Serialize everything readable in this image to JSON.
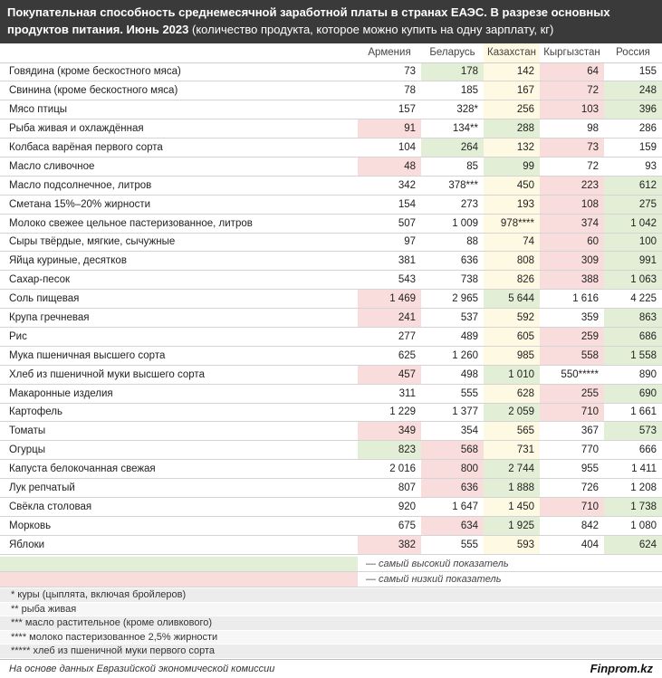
{
  "chart_data": {
    "type": "table",
    "title": "Покупательная способность среднемесячной заработной платы в странах ЕАЭС. В разрезе основных продуктов питания. Июнь 2023",
    "subtitle": "(количество продукта, которое можно купить на одну зарплату, кг)",
    "columns": [
      "Армения",
      "Беларусь",
      "Казахстан",
      "Кыргызстан",
      "Россия"
    ],
    "rows": [
      {
        "name": "Говядина (кроме бескостного мяса)",
        "cells": [
          "73",
          "178",
          "142",
          "64",
          "155"
        ],
        "marks": [
          "",
          "hi",
          "",
          "lo",
          ""
        ]
      },
      {
        "name": "Свинина (кроме бескостного мяса)",
        "cells": [
          "78",
          "185",
          "167",
          "72",
          "248"
        ],
        "marks": [
          "",
          "",
          "",
          "lo",
          "hi"
        ]
      },
      {
        "name": "Мясо птицы",
        "cells": [
          "157",
          "328*",
          "256",
          "103",
          "396"
        ],
        "marks": [
          "",
          "",
          "",
          "lo",
          "hi"
        ]
      },
      {
        "name": "Рыба живая и охлаждённая",
        "cells": [
          "91",
          "134**",
          "288",
          "98",
          "286"
        ],
        "marks": [
          "lo",
          "",
          "hi",
          "",
          ""
        ]
      },
      {
        "name": "Колбаса варёная первого сорта",
        "cells": [
          "104",
          "264",
          "132",
          "73",
          "159"
        ],
        "marks": [
          "",
          "hi",
          "",
          "lo",
          ""
        ]
      },
      {
        "name": "Масло сливочное",
        "cells": [
          "48",
          "85",
          "99",
          "72",
          "93"
        ],
        "marks": [
          "lo",
          "",
          "hi",
          "",
          ""
        ]
      },
      {
        "name": "Масло подсолнечное, литров",
        "cells": [
          "342",
          "378***",
          "450",
          "223",
          "612"
        ],
        "marks": [
          "",
          "",
          "",
          "lo",
          "hi"
        ]
      },
      {
        "name": "Сметана 15%–20% жирности",
        "cells": [
          "154",
          "273",
          "193",
          "108",
          "275"
        ],
        "marks": [
          "",
          "",
          "",
          "lo",
          "hi"
        ]
      },
      {
        "name": "Молоко свежее цельное пастеризованное, литров",
        "cells": [
          "507",
          "1 009",
          "978****",
          "374",
          "1 042"
        ],
        "marks": [
          "",
          "",
          "",
          "lo",
          "hi"
        ]
      },
      {
        "name": "Сыры твёрдые, мягкие, сычужные",
        "cells": [
          "97",
          "88",
          "74",
          "60",
          "100"
        ],
        "marks": [
          "",
          "",
          "",
          "lo",
          "hi"
        ]
      },
      {
        "name": "Яйца куриные, десятков",
        "cells": [
          "381",
          "636",
          "808",
          "309",
          "991"
        ],
        "marks": [
          "",
          "",
          "",
          "lo",
          "hi"
        ]
      },
      {
        "name": "Сахар-песок",
        "cells": [
          "543",
          "738",
          "826",
          "388",
          "1 063"
        ],
        "marks": [
          "",
          "",
          "",
          "lo",
          "hi"
        ]
      },
      {
        "name": "Соль пищевая",
        "cells": [
          "1 469",
          "2 965",
          "5 644",
          "1 616",
          "4 225"
        ],
        "marks": [
          "lo",
          "",
          "hi",
          "",
          ""
        ]
      },
      {
        "name": "Крупа гречневая",
        "cells": [
          "241",
          "537",
          "592",
          "359",
          "863"
        ],
        "marks": [
          "lo",
          "",
          "",
          "",
          "hi"
        ]
      },
      {
        "name": "Рис",
        "cells": [
          "277",
          "489",
          "605",
          "259",
          "686"
        ],
        "marks": [
          "",
          "",
          "",
          "lo",
          "hi"
        ]
      },
      {
        "name": "Мука пшеничная высшего сорта",
        "cells": [
          "625",
          "1 260",
          "985",
          "558",
          "1 558"
        ],
        "marks": [
          "",
          "",
          "",
          "lo",
          "hi"
        ]
      },
      {
        "name": "Хлеб из пшеничной муки высшего сорта",
        "cells": [
          "457",
          "498",
          "1 010",
          "550*****",
          "890"
        ],
        "marks": [
          "lo",
          "",
          "hi",
          "",
          ""
        ]
      },
      {
        "name": "Макаронные изделия",
        "cells": [
          "311",
          "555",
          "628",
          "255",
          "690"
        ],
        "marks": [
          "",
          "",
          "",
          "lo",
          "hi"
        ]
      },
      {
        "name": "Картофель",
        "cells": [
          "1 229",
          "1 377",
          "2 059",
          "710",
          "1 661"
        ],
        "marks": [
          "",
          "",
          "hi",
          "lo",
          ""
        ]
      },
      {
        "name": "Томаты",
        "cells": [
          "349",
          "354",
          "565",
          "367",
          "573"
        ],
        "marks": [
          "lo",
          "",
          "",
          "",
          "hi"
        ]
      },
      {
        "name": "Огурцы",
        "cells": [
          "823",
          "568",
          "731",
          "770",
          "666"
        ],
        "marks": [
          "hi",
          "lo",
          "",
          "",
          ""
        ]
      },
      {
        "name": "Капуста белокочанная свежая",
        "cells": [
          "2 016",
          "800",
          "2 744",
          "955",
          "1 411"
        ],
        "marks": [
          "",
          "lo",
          "hi",
          "",
          ""
        ]
      },
      {
        "name": "Лук репчатый",
        "cells": [
          "807",
          "636",
          "1 888",
          "726",
          "1 208"
        ],
        "marks": [
          "",
          "lo",
          "hi",
          "",
          ""
        ]
      },
      {
        "name": "Свёкла столовая",
        "cells": [
          "920",
          "1 647",
          "1 450",
          "710",
          "1 738"
        ],
        "marks": [
          "",
          "",
          "",
          "lo",
          "hi"
        ]
      },
      {
        "name": "Морковь",
        "cells": [
          "675",
          "634",
          "1 925",
          "842",
          "1 080"
        ],
        "marks": [
          "",
          "lo",
          "hi",
          "",
          ""
        ]
      },
      {
        "name": "Яблоки",
        "cells": [
          "382",
          "555",
          "593",
          "404",
          "624"
        ],
        "marks": [
          "lo",
          "",
          "",
          "",
          "hi"
        ]
      }
    ],
    "legend": [
      {
        "mark": "hi",
        "label": "— самый высокий показатель"
      },
      {
        "mark": "lo",
        "label": "— самый низкий показатель"
      }
    ],
    "notes": [
      "* куры (цыплята, включая бройлеров)",
      "** рыба живая",
      "*** масло растительное (кроме оливкового)",
      "**** молоко пастеризованное 2,5% жирности",
      "***** хлеб из пшеничной муки первого сорта"
    ],
    "source": "На основе данных Евразийской экономической комиссии",
    "brand": "Finprom.kz"
  },
  "colors": {
    "header_bg": "#3a3a3a",
    "highest": "#e2efd6",
    "lowest": "#f9dcdc",
    "kazakhstan_column": "#fdf9e2"
  }
}
